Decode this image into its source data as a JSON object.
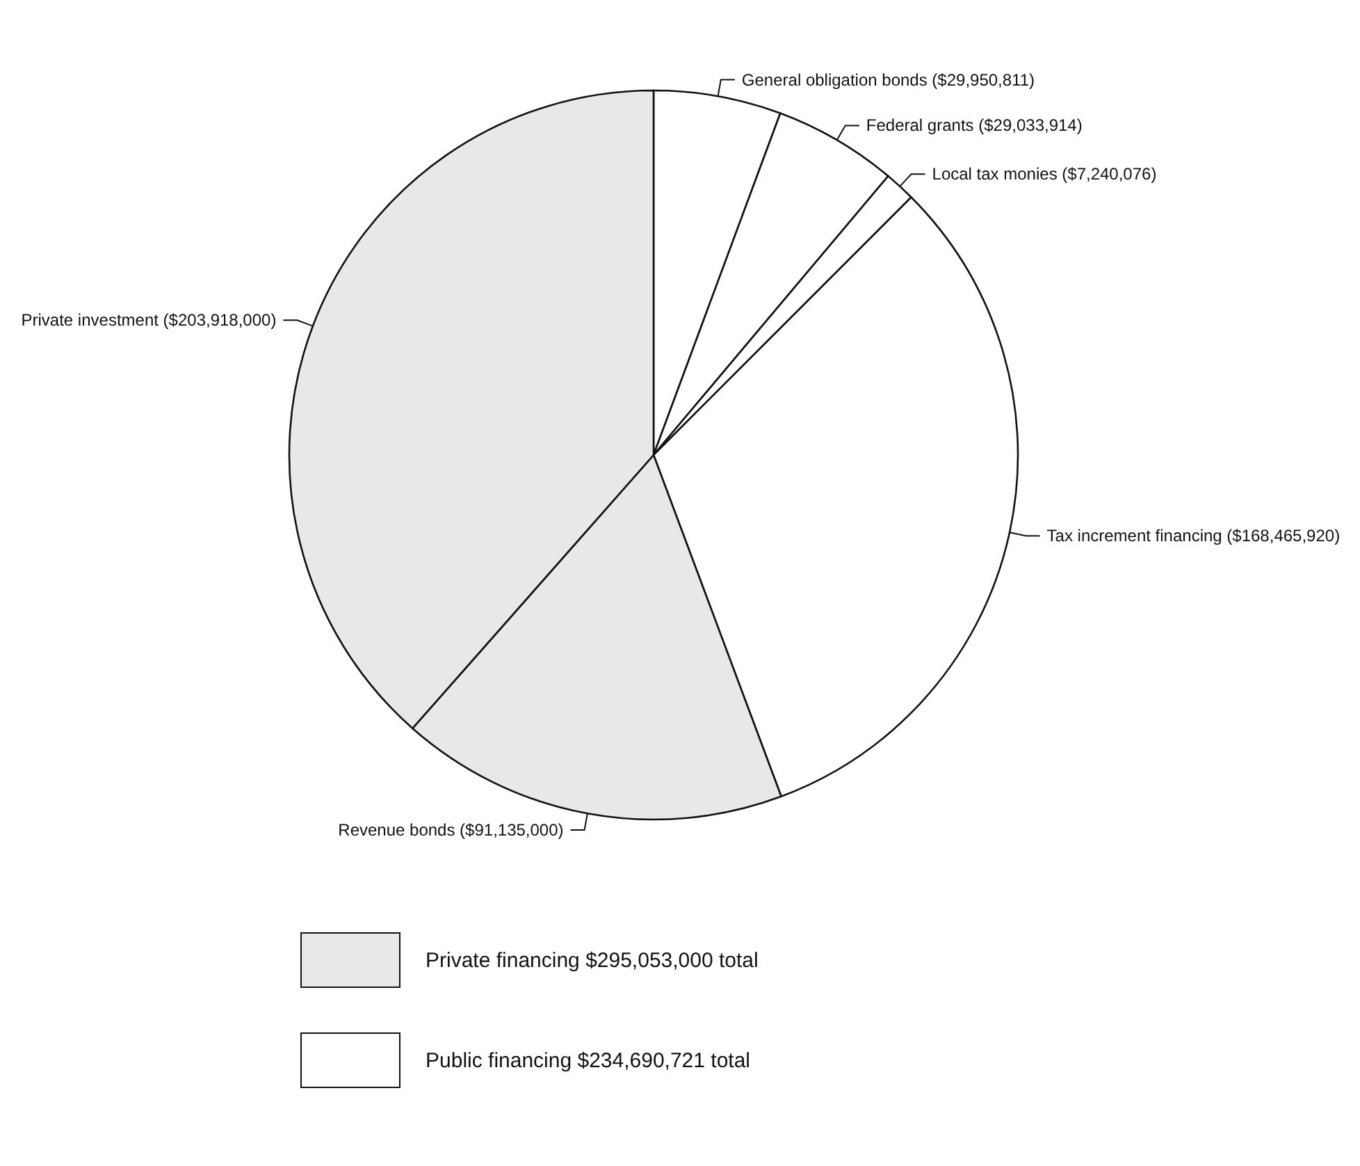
{
  "chart_data": {
    "type": "pie",
    "categories": [
      "General obligation bonds",
      "Federal grants",
      "Local tax monies",
      "Tax increment financing",
      "Revenue bonds",
      "Private investment"
    ],
    "values": [
      29950811,
      29033914,
      7240076,
      168465920,
      91135000,
      203918000
    ],
    "value_labels": [
      "($29,950,811)",
      "($29,033,914)",
      "($7,240,076)",
      "($168,465,920)",
      "($91,135,000)",
      "($203,918,000)"
    ],
    "colors": [
      "#ffffff",
      "#ffffff",
      "#ffffff",
      "#ffffff",
      "#e8e8e8",
      "#e8e8e8"
    ],
    "annotations": [
      "Private financing $295,053,000 total",
      "Public financing $234,690,721 total"
    ],
    "legend": false
  }
}
